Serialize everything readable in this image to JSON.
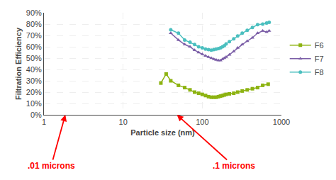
{
  "chart_data": {
    "type": "line",
    "xlabel": "Particle size (nm)",
    "ylabel": "Filtration Efficiency",
    "log": "x",
    "grid": true,
    "legend": "right",
    "xlim": [
      1,
      1000
    ],
    "ylim": [
      0,
      0.9
    ],
    "xticks": [
      1,
      10,
      100,
      1000
    ],
    "yticks": [
      {
        "value": 0.0,
        "label": "0%"
      },
      {
        "value": 0.1,
        "label": "10%"
      },
      {
        "value": 0.2,
        "label": "20%"
      },
      {
        "value": 0.3,
        "label": "30%"
      },
      {
        "value": 0.4,
        "label": "40%"
      },
      {
        "value": 0.5,
        "label": "50%"
      },
      {
        "value": 0.6,
        "label": "60%"
      },
      {
        "value": 0.7,
        "label": "70%"
      },
      {
        "value": 0.8,
        "label": "80%"
      },
      {
        "value": 0.9,
        "label": "90%"
      }
    ],
    "series": [
      {
        "name": "F6",
        "color": "#8db311",
        "marker": "square",
        "x": [
          30,
          35,
          40,
          50,
          60,
          70,
          80,
          90,
          100,
          110,
          120,
          130,
          140,
          150,
          160,
          170,
          180,
          190,
          200,
          220,
          250,
          280,
          320,
          370,
          430,
          500,
          580,
          680
        ],
        "values": [
          0.28,
          0.36,
          0.3,
          0.26,
          0.24,
          0.22,
          0.2,
          0.19,
          0.18,
          0.17,
          0.16,
          0.155,
          0.155,
          0.155,
          0.16,
          0.165,
          0.17,
          0.175,
          0.18,
          0.185,
          0.19,
          0.2,
          0.21,
          0.22,
          0.23,
          0.24,
          0.26,
          0.27
        ]
      },
      {
        "name": "F7",
        "color": "#7b5ea7",
        "marker": "triangle-up",
        "x": [
          40,
          50,
          60,
          70,
          80,
          90,
          100,
          110,
          120,
          130,
          140,
          150,
          160,
          170,
          180,
          190,
          200,
          220,
          250,
          280,
          320,
          370,
          430,
          500,
          580,
          650,
          700
        ],
        "values": [
          0.72,
          0.66,
          0.62,
          0.6,
          0.57,
          0.55,
          0.535,
          0.52,
          0.51,
          0.5,
          0.49,
          0.485,
          0.48,
          0.48,
          0.49,
          0.5,
          0.51,
          0.53,
          0.56,
          0.59,
          0.62,
          0.65,
          0.68,
          0.72,
          0.74,
          0.73,
          0.74
        ]
      },
      {
        "name": "F8",
        "color": "#4bbfbf",
        "marker": "circle",
        "x": [
          40,
          50,
          60,
          70,
          80,
          90,
          100,
          110,
          120,
          130,
          140,
          150,
          160,
          170,
          180,
          190,
          200,
          220,
          250,
          280,
          320,
          370,
          430,
          500,
          580,
          650,
          700
        ],
        "values": [
          0.75,
          0.72,
          0.66,
          0.64,
          0.62,
          0.6,
          0.59,
          0.58,
          0.575,
          0.57,
          0.575,
          0.58,
          0.585,
          0.59,
          0.6,
          0.61,
          0.625,
          0.645,
          0.67,
          0.695,
          0.72,
          0.745,
          0.77,
          0.795,
          0.8,
          0.81,
          0.815
        ]
      }
    ],
    "annotations": [
      {
        "text": ".01 microns",
        "color": "red"
      },
      {
        "text": ".1 microns",
        "color": "red"
      }
    ]
  }
}
